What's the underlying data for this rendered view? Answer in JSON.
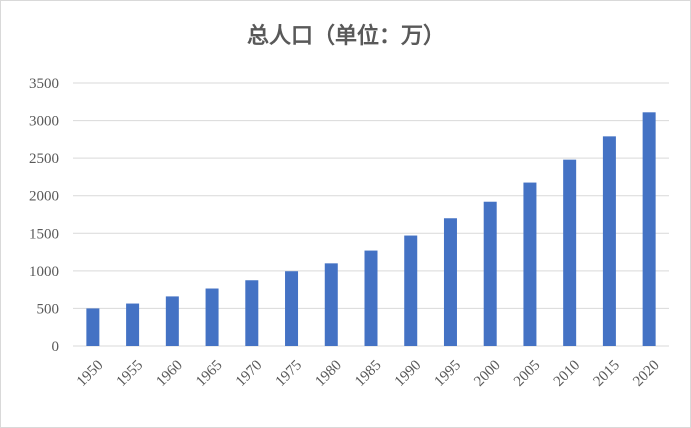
{
  "chart_data": {
    "type": "bar",
    "title": "总人口（单位：万）",
    "xlabel": "",
    "ylabel": "",
    "categories": [
      "1950",
      "1955",
      "1960",
      "1965",
      "1970",
      "1975",
      "1980",
      "1985",
      "1990",
      "1995",
      "2000",
      "2005",
      "2010",
      "2015",
      "2020"
    ],
    "values": [
      500,
      565,
      660,
      765,
      875,
      995,
      1100,
      1270,
      1470,
      1700,
      1920,
      2175,
      2480,
      2790,
      3110
    ],
    "ylim": [
      0,
      3500
    ],
    "yticks": [
      0,
      500,
      1000,
      1500,
      2000,
      2500,
      3000,
      3500
    ],
    "grid": true,
    "legend": "none",
    "bar_color": "#4472c4",
    "grid_color": "#d9d9d9",
    "text_color": "#595959"
  }
}
